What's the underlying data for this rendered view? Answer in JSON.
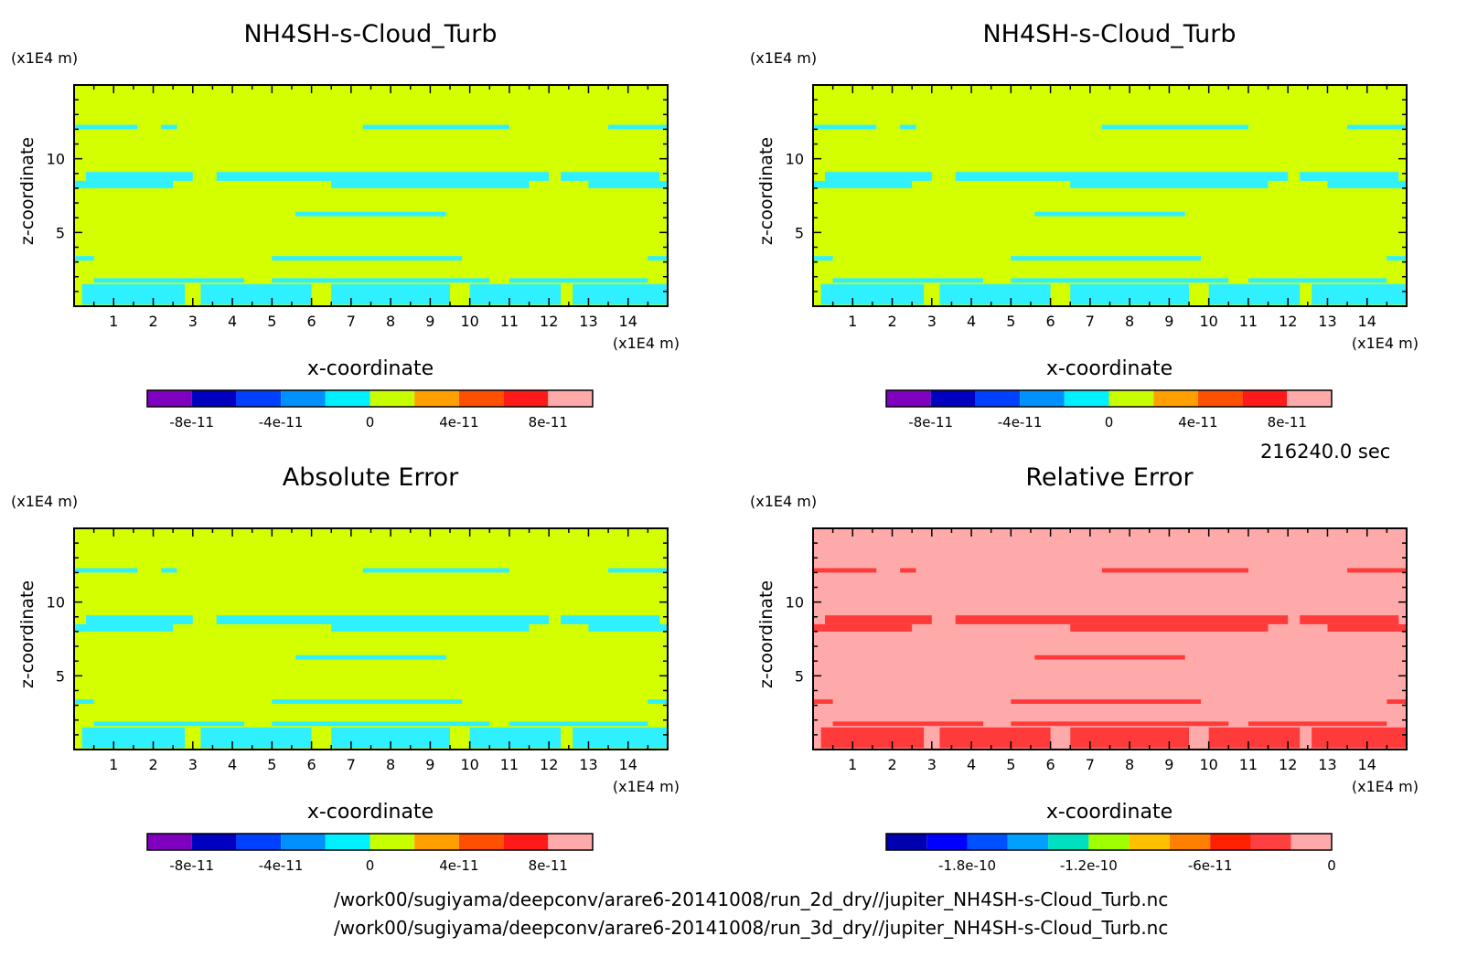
{
  "time_label": "216240.0 sec",
  "file_lines": [
    "/work00/sugiyama/deepconv/arare6-20141008/run_2d_dry//jupiter_NH4SH-s-Cloud_Turb.nc",
    "/work00/sugiyama/deepconv/arare6-20141008/run_3d_dry//jupiter_NH4SH-s-Cloud_Turb.nc"
  ],
  "chart_data": [
    {
      "type": "heatmap",
      "title": "NH4SH-s-Cloud_Turb",
      "xlabel": "x-coordinate",
      "ylabel": "z-coordinate",
      "x_unit": "(x1E4 m)",
      "y_unit": "(x1E4 m)",
      "xlim": [
        0,
        15
      ],
      "ylim": [
        0,
        15
      ],
      "x_ticks": [
        1,
        2,
        3,
        4,
        5,
        6,
        7,
        8,
        9,
        10,
        11,
        12,
        13,
        14
      ],
      "y_ticks": [
        5,
        10
      ],
      "background": "#d4ff00",
      "patch_color": "#2ff0ff",
      "colorbar": {
        "colors": [
          "#7f00bf",
          "#0000c0",
          "#0040ff",
          "#0090ff",
          "#00f0ff",
          "#c8ff00",
          "#ffa000",
          "#ff5000",
          "#ff1a1a",
          "#ffaaaa"
        ],
        "tick_values": [
          -8e-11,
          -4e-11,
          0,
          4e-11,
          8e-11
        ],
        "tick_labels": [
          "-8e-11",
          "-4e-11",
          "0",
          "4e-11",
          "8e-11"
        ],
        "range": [
          -1e-10,
          1e-10
        ]
      }
    },
    {
      "type": "heatmap",
      "title": "NH4SH-s-Cloud_Turb",
      "xlabel": "x-coordinate",
      "ylabel": "z-coordinate",
      "x_unit": "(x1E4 m)",
      "y_unit": "(x1E4 m)",
      "xlim": [
        0,
        15
      ],
      "ylim": [
        0,
        15
      ],
      "x_ticks": [
        1,
        2,
        3,
        4,
        5,
        6,
        7,
        8,
        9,
        10,
        11,
        12,
        13,
        14
      ],
      "y_ticks": [
        5,
        10
      ],
      "background": "#d4ff00",
      "patch_color": "#2ff0ff",
      "colorbar": {
        "colors": [
          "#7f00bf",
          "#0000c0",
          "#0040ff",
          "#0090ff",
          "#00f0ff",
          "#c8ff00",
          "#ffa000",
          "#ff5000",
          "#ff1a1a",
          "#ffaaaa"
        ],
        "tick_values": [
          -8e-11,
          -4e-11,
          0,
          4e-11,
          8e-11
        ],
        "tick_labels": [
          "-8e-11",
          "-4e-11",
          "0",
          "4e-11",
          "8e-11"
        ],
        "range": [
          -1e-10,
          1e-10
        ]
      }
    },
    {
      "type": "heatmap",
      "title": "Absolute Error",
      "xlabel": "x-coordinate",
      "ylabel": "z-coordinate",
      "x_unit": "(x1E4 m)",
      "y_unit": "(x1E4 m)",
      "xlim": [
        0,
        15
      ],
      "ylim": [
        0,
        15
      ],
      "x_ticks": [
        1,
        2,
        3,
        4,
        5,
        6,
        7,
        8,
        9,
        10,
        11,
        12,
        13,
        14
      ],
      "y_ticks": [
        5,
        10
      ],
      "background": "#d4ff00",
      "patch_color": "#2ff0ff",
      "colorbar": {
        "colors": [
          "#7f00bf",
          "#0000c0",
          "#0040ff",
          "#0090ff",
          "#00f0ff",
          "#c8ff00",
          "#ffa000",
          "#ff5000",
          "#ff1a1a",
          "#ffaaaa"
        ],
        "tick_values": [
          -8e-11,
          -4e-11,
          0,
          4e-11,
          8e-11
        ],
        "tick_labels": [
          "-8e-11",
          "-4e-11",
          "0",
          "4e-11",
          "8e-11"
        ],
        "range": [
          -1e-10,
          1e-10
        ]
      }
    },
    {
      "type": "heatmap",
      "title": "Relative Error",
      "xlabel": "x-coordinate",
      "ylabel": "z-coordinate",
      "x_unit": "(x1E4 m)",
      "y_unit": "(x1E4 m)",
      "xlim": [
        0,
        15
      ],
      "ylim": [
        0,
        15
      ],
      "x_ticks": [
        1,
        2,
        3,
        4,
        5,
        6,
        7,
        8,
        9,
        10,
        11,
        12,
        13,
        14
      ],
      "y_ticks": [
        5,
        10
      ],
      "background": "#ffaaaa",
      "patch_color": "#ff3a3a",
      "colorbar": {
        "colors": [
          "#0000b0",
          "#0000ff",
          "#0050ff",
          "#00a0ff",
          "#00e0c0",
          "#a0ff00",
          "#ffc000",
          "#ff8000",
          "#ff2000",
          "#ff4040",
          "#ffaaaa"
        ],
        "tick_values": [
          -1.8e-10,
          -1.2e-10,
          -6e-11,
          0
        ],
        "tick_labels": [
          "-1.8e-10",
          "-1.2e-10",
          "-6e-11",
          "0"
        ],
        "range": [
          -2.2e-10,
          0
        ]
      }
    }
  ]
}
